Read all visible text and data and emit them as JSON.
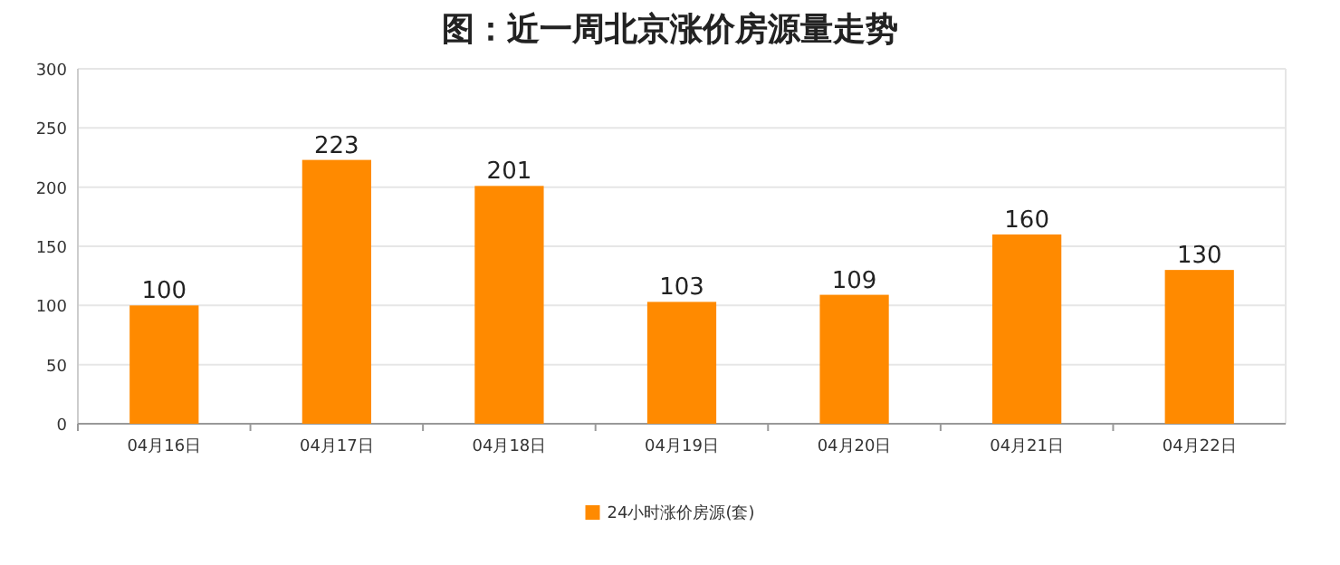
{
  "chart_data": {
    "type": "bar",
    "title": "图：近一周北京涨价房源量走势",
    "categories": [
      "04月16日",
      "04月17日",
      "04月18日",
      "04月19日",
      "04月20日",
      "04月21日",
      "04月22日"
    ],
    "series": [
      {
        "name": "24小时涨价房源(套)",
        "color": "#ff8a00",
        "values": [
          100,
          223,
          201,
          103,
          109,
          160,
          130
        ]
      }
    ],
    "ylim": [
      0,
      300
    ],
    "yticks": [
      0,
      50,
      100,
      150,
      200,
      250,
      300
    ],
    "grid": "y",
    "legend": "bottom",
    "data_labels": true
  }
}
